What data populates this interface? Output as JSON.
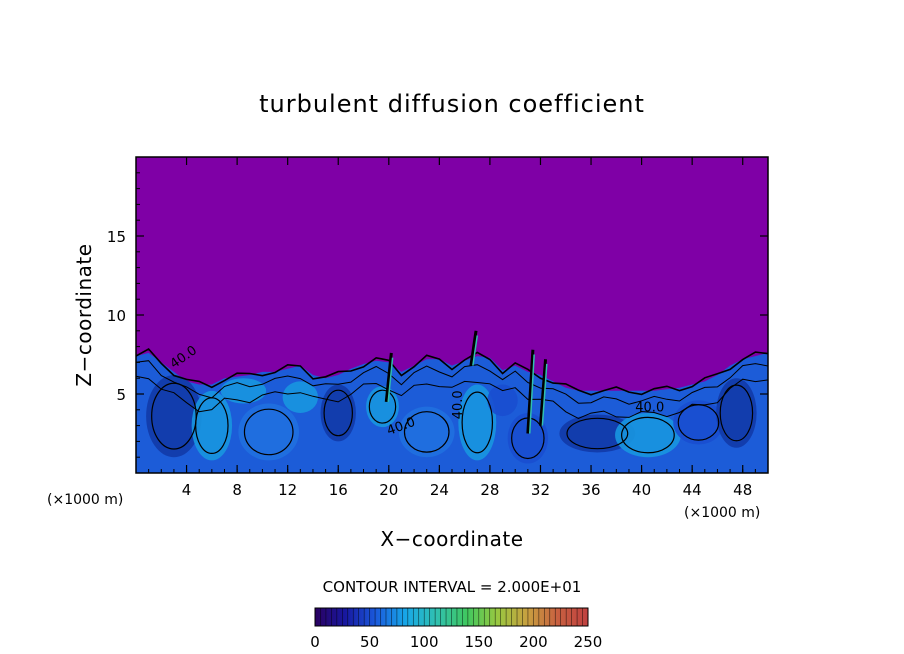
{
  "chart_data": {
    "type": "heatmap",
    "title": "turbulent diffusion coefficient",
    "xlabel": "X−coordinate",
    "ylabel": "Z−coordinate",
    "x_unit_left": "(×1000 m)",
    "x_unit_right": "(×1000 m)",
    "xlim": [
      0,
      50
    ],
    "ylim": [
      0,
      20
    ],
    "xticks": [
      "4",
      "8",
      "12",
      "16",
      "20",
      "24",
      "28",
      "32",
      "36",
      "40",
      "44",
      "48"
    ],
    "yticks": [
      "5",
      "10",
      "15"
    ],
    "contour_interval_text": "CONTOUR INTERVAL = 2.000E+01",
    "contour_labels": [
      "40.0",
      "40.0",
      "40.0",
      "40.0"
    ],
    "colorbar": {
      "range": [
        0,
        250
      ],
      "ticks": [
        "0",
        "50",
        "100",
        "150",
        "200",
        "250"
      ],
      "colors": [
        "#2a0060",
        "#1818a0",
        "#1a5adc",
        "#18a8e8",
        "#30c0b0",
        "#40c860",
        "#98c840",
        "#c8a040",
        "#c86040",
        "#c04040"
      ]
    },
    "field": {
      "background_color": "#7f00a6",
      "turbulent_layer_top_km": [
        7.4,
        7.6,
        7.0,
        6.4,
        5.8,
        5.6,
        5.6,
        6.0,
        6.1,
        6.2,
        6.4,
        6.4,
        6.6,
        6.8,
        6.2,
        6.0,
        6.2,
        6.6,
        6.9,
        7.1,
        7.0,
        6.4,
        6.8,
        7.2,
        7.2,
        6.8,
        7.1,
        7.4,
        7.3,
        6.5,
        6.8,
        6.4,
        6.2,
        5.8,
        5.4,
        5.2,
        5.2,
        5.2,
        5.2,
        5.2,
        5.2,
        5.2,
        5.3,
        5.4,
        5.6,
        5.8,
        6.2,
        6.8,
        7.2,
        7.4,
        7.6
      ],
      "layer_colors": [
        "#1c5cd8",
        "#2070e0",
        "#1a4ed0",
        "#1896e0",
        "#123aa8"
      ]
    }
  }
}
